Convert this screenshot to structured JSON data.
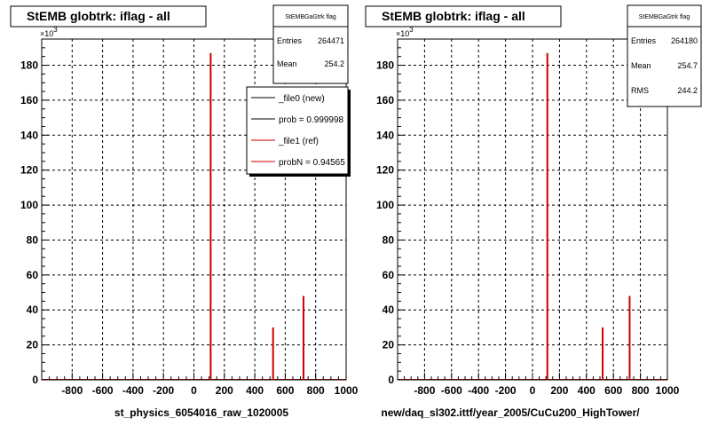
{
  "chart_data": [
    {
      "type": "bar",
      "title": "StEMB globtrk: iflag - all",
      "xlabel": "st_physics_6054016_raw_1020005",
      "ylabel": "",
      "y_multiplier": "×10",
      "y_multiplier_exp": "3",
      "xlim": [
        -1000,
        1000
      ],
      "ylim": [
        0,
        195
      ],
      "x_ticks": [
        "-800",
        "-600",
        "-400",
        "-200",
        "0",
        "200",
        "400",
        "600",
        "800",
        "1000"
      ],
      "y_ticks": [
        "0",
        "20",
        "40",
        "60",
        "80",
        "100",
        "120",
        "140",
        "160",
        "180"
      ],
      "grid": true,
      "series": [
        {
          "name": "_file1 (ref)",
          "color": "#cc0000",
          "x": [
            110,
            520,
            720
          ],
          "values": [
            187,
            30,
            48
          ]
        }
      ],
      "stats": {
        "header": "StEMBGaGtrk flag",
        "rows": [
          {
            "label": "Entries",
            "value": "264471"
          },
          {
            "label": "Mean",
            "value": "254.2"
          }
        ]
      },
      "legend": {
        "placement": "top-right",
        "entries": [
          {
            "label": "_file0 (new)",
            "color": "#000000"
          },
          {
            "label": "prob = 0.999998",
            "color": "#000000"
          },
          {
            "label": "_file1 (ref)",
            "color": "#cc0000"
          },
          {
            "label": "probN = 0.94565",
            "color": "#cc0000"
          }
        ]
      }
    },
    {
      "type": "bar",
      "title": "StEMB globtrk: iflag - all",
      "xlabel": "new/daq_sl302.ittf/year_2005/CuCu200_HighTower/",
      "ylabel": "",
      "y_multiplier": "×10",
      "y_multiplier_exp": "3",
      "xlim": [
        -1000,
        1000
      ],
      "ylim": [
        0,
        195
      ],
      "x_ticks": [
        "-800",
        "-600",
        "-400",
        "-200",
        "0",
        "200",
        "400",
        "600",
        "800",
        "1000"
      ],
      "y_ticks": [
        "0",
        "20",
        "40",
        "60",
        "80",
        "100",
        "120",
        "140",
        "160",
        "180"
      ],
      "grid": true,
      "series": [
        {
          "color": "#cc0000",
          "x": [
            110,
            520,
            720
          ],
          "values": [
            187,
            30,
            48
          ]
        }
      ],
      "stats": {
        "header": "StEMBGaGtrk flag",
        "rows": [
          {
            "label": "Entries",
            "value": "264180"
          },
          {
            "label": "Mean",
            "value": "254.7"
          },
          {
            "label": "RMS",
            "value": "244.2"
          }
        ]
      }
    }
  ]
}
